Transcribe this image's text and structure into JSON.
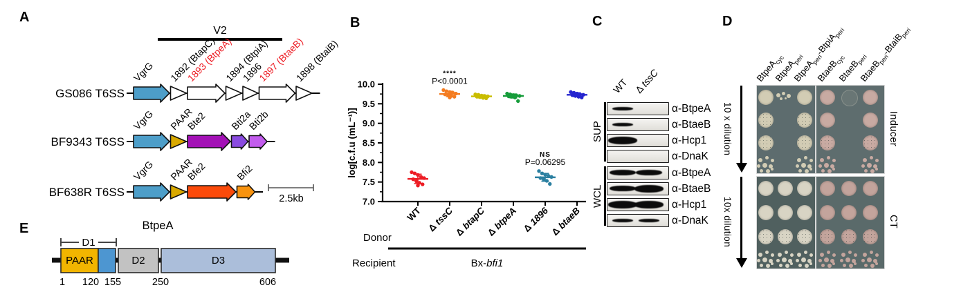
{
  "panel_letters": {
    "a": "A",
    "b": "B",
    "c": "C",
    "d": "D",
    "e": "E"
  },
  "panelA": {
    "v2_label": "V2",
    "scale_label": "2.5kb",
    "rows": [
      {
        "name": "GS086 T6SS",
        "genes": [
          {
            "label": "VgrG",
            "lc": "#000000",
            "fill": "#4d9ec9",
            "type": "big",
            "w": 52
          },
          {
            "label": "1892 (BtapC)",
            "lc": "#000000",
            "fill": "#ffffff",
            "type": "tri",
            "w": 23
          },
          {
            "label": "1893 (BtpeA)",
            "lc": "#ed1c24",
            "fill": "#ffffff",
            "type": "big",
            "w": 54
          },
          {
            "label": "1894 (BtpiA)",
            "lc": "#000000",
            "fill": "#ffffff",
            "type": "tri",
            "w": 23
          },
          {
            "label": "1896",
            "lc": "#000000",
            "fill": "#ffffff",
            "type": "tri",
            "w": 22
          },
          {
            "label": "1897 (BtaeB)",
            "lc": "#ed1c24",
            "fill": "#ffffff",
            "type": "big",
            "w": 52
          },
          {
            "label": "1898 (BtaiB)",
            "lc": "#000000",
            "fill": "#ffffff",
            "type": "tri",
            "w": 23
          }
        ]
      },
      {
        "name": "BF9343 T6SS",
        "genes": [
          {
            "label": "VgrG",
            "lc": "#000000",
            "fill": "#4d9ec9",
            "type": "big",
            "w": 52
          },
          {
            "label": "PAAR",
            "lc": "#000000",
            "fill": "#d9a900",
            "type": "tri",
            "w": 23
          },
          {
            "label": "Bte2",
            "lc": "#000000",
            "fill": "#a311b6",
            "type": "big",
            "w": 62
          },
          {
            "label": "Bti2a",
            "lc": "#000000",
            "fill": "#8a4be0",
            "type": "pent",
            "w": 24
          },
          {
            "label": "Bti2b",
            "lc": "#000000",
            "fill": "#c25ced",
            "type": "pent",
            "w": 26
          }
        ]
      },
      {
        "name": "BF638R T6SS",
        "genes": [
          {
            "label": "VgrG",
            "lc": "#000000",
            "fill": "#4d9ec9",
            "type": "big",
            "w": 52
          },
          {
            "label": "PAAR",
            "lc": "#000000",
            "fill": "#d9a900",
            "type": "tri",
            "w": 23
          },
          {
            "label": "Bfe2",
            "lc": "#000000",
            "fill": "#fb4a0a",
            "type": "big",
            "w": 70
          },
          {
            "label": "Bfi2",
            "lc": "#000000",
            "fill": "#f8930f",
            "type": "pent",
            "w": 26
          }
        ]
      }
    ]
  },
  "chart_data": {
    "type": "scatter",
    "ylabel": "log[c.f.u (mL⁻¹)]",
    "ylim": [
      7.0,
      10.0
    ],
    "yticks": [
      7.0,
      7.5,
      8.0,
      8.5,
      9.0,
      9.5,
      10.0
    ],
    "grid": false,
    "categories": [
      "WT",
      "Δ tssC",
      "Δ btapC",
      "Δ btpeA",
      "Δ 1896",
      "Δ btaeB"
    ],
    "colors": [
      "#ed1c24",
      "#f47c20",
      "#c9bd00",
      "#169c3a",
      "#2a7fa0",
      "#2424cf"
    ],
    "series": [
      {
        "name": "WT",
        "mean": 7.58,
        "sd": 0.12,
        "points": [
          7.75,
          7.72,
          7.68,
          7.63,
          7.6,
          7.57,
          7.52,
          7.48,
          7.44,
          7.41
        ]
      },
      {
        "name": "Δ tssC",
        "mean": 9.75,
        "sd": 0.07,
        "points": [
          9.85,
          9.82,
          9.8,
          9.78,
          9.76,
          9.74,
          9.72,
          9.7,
          9.68,
          9.66
        ]
      },
      {
        "name": "Δ btapC",
        "mean": 9.69,
        "sd": 0.04,
        "points": [
          9.74,
          9.73,
          9.71,
          9.7,
          9.69,
          9.68,
          9.67,
          9.65,
          9.64
        ]
      },
      {
        "name": "Δ btpeA",
        "mean": 9.7,
        "sd": 0.05,
        "points": [
          9.76,
          9.74,
          9.72,
          9.71,
          9.7,
          9.69,
          9.68,
          9.66,
          9.57
        ]
      },
      {
        "name": "Δ 1896",
        "mean": 7.62,
        "sd": 0.1,
        "points": [
          7.78,
          7.72,
          7.69,
          7.66,
          7.63,
          7.6,
          7.57,
          7.53,
          7.45
        ]
      },
      {
        "name": "Δ btaeB",
        "mean": 9.73,
        "sd": 0.05,
        "points": [
          9.8,
          9.78,
          9.76,
          9.74,
          9.73,
          9.72,
          9.7,
          9.68,
          9.66
        ]
      }
    ],
    "annotations": [
      {
        "group": 1,
        "lines": [
          "****",
          "P<0.0001"
        ]
      },
      {
        "group": 4,
        "lines": [
          "NS",
          "P=0.06295"
        ]
      }
    ],
    "donor_label": "Donor",
    "recipient_label": "Recipient",
    "recipient_value_prefix": "Bx-",
    "recipient_value_italic": "bfi1"
  },
  "panelC": {
    "lanes": [
      {
        "plain": "WT"
      },
      {
        "delta": "tssC"
      }
    ],
    "sections": [
      {
        "name": "SUP",
        "rows": [
          {
            "label": "α-BtpeA",
            "bands": [
              1,
              0
            ]
          },
          {
            "label": "α-BtaeB",
            "bands": [
              1,
              0
            ]
          },
          {
            "label": "α-Hcp1",
            "bands": [
              3,
              0
            ]
          },
          {
            "label": "α-DnaK",
            "bands": [
              0,
              0
            ]
          }
        ]
      },
      {
        "name": "WCL",
        "rows": [
          {
            "label": "α-BtpeA",
            "bands": [
              2,
              2
            ]
          },
          {
            "label": "α-BtaeB",
            "bands": [
              2,
              3
            ]
          },
          {
            "label": "α-Hcp1",
            "bands": [
              3,
              3
            ]
          },
          {
            "label": "α-DnaK",
            "bands": [
              1,
              1
            ]
          }
        ]
      }
    ]
  },
  "panelD": {
    "col_labels": [
      {
        "parts": [
          {
            "t": "BtpeA"
          },
          {
            "t": "cyc",
            "sub": true
          }
        ]
      },
      {
        "parts": [
          {
            "t": "BtpeA"
          },
          {
            "t": "peri",
            "sub": true
          }
        ]
      },
      {
        "parts": [
          {
            "t": "BtpeA"
          },
          {
            "t": "peri",
            "sub": true
          },
          {
            "t": "-BtpiA"
          },
          {
            "t": "peri",
            "sub": true
          }
        ]
      },
      {
        "parts": [
          {
            "t": "BtaeB"
          },
          {
            "t": "cyc",
            "sub": true
          }
        ]
      },
      {
        "parts": [
          {
            "t": "BtaeB"
          },
          {
            "t": "peri",
            "sub": true
          }
        ]
      },
      {
        "parts": [
          {
            "t": "BtaeB"
          },
          {
            "t": "peri",
            "sub": true
          },
          {
            "t": "-BtaiB"
          },
          {
            "t": "peri",
            "sub": true
          }
        ]
      }
    ],
    "dilution_labels": [
      "10 x dilution",
      "10x dilution"
    ],
    "condition_labels": [
      "Inducer",
      "CT"
    ],
    "plates": [
      {
        "bg": "#5d6c6e",
        "spot": "#d2ccb4",
        "cols": [
          [
            "full",
            "mottled",
            "mottled",
            "scatter"
          ],
          [
            "few",
            "none",
            "none",
            "none"
          ],
          [
            "full",
            "mottled",
            "mottled",
            "scatter"
          ]
        ]
      },
      {
        "bg": "#5e6d6e",
        "spot": "#c8aaa2",
        "cols": [
          [
            "full",
            "full",
            "mottled",
            "scatter"
          ],
          [
            "ghost",
            "none",
            "none",
            "none"
          ],
          [
            "full",
            "full",
            "mottled",
            "scatter"
          ]
        ]
      },
      {
        "bg": "#50605f",
        "spot": "#d8d4c4",
        "cols": [
          [
            "full",
            "full",
            "mottled",
            "scatter"
          ],
          [
            "full",
            "full",
            "mottled",
            "scatter"
          ],
          [
            "full",
            "full",
            "mottled",
            "scatter"
          ]
        ]
      },
      {
        "bg": "#5a6a6a",
        "spot": "#c3a49c",
        "cols": [
          [
            "full",
            "full",
            "mottled",
            "scatter"
          ],
          [
            "full",
            "full",
            "mottled",
            "scatter"
          ],
          [
            "full",
            "full",
            "mottled",
            "scatter"
          ]
        ]
      }
    ]
  },
  "panelE": {
    "title": "BtpeA",
    "bracket_label": "D1",
    "domains": [
      {
        "label": "PAAR",
        "fill": "#f2b500"
      },
      {
        "label": "",
        "fill": "#4d96d1"
      },
      {
        "label": "D2",
        "fill": "#c2c2c2"
      },
      {
        "label": "D3",
        "fill": "#abbeda"
      }
    ],
    "residues": [
      "1",
      "120",
      "155",
      "250",
      "606"
    ]
  }
}
